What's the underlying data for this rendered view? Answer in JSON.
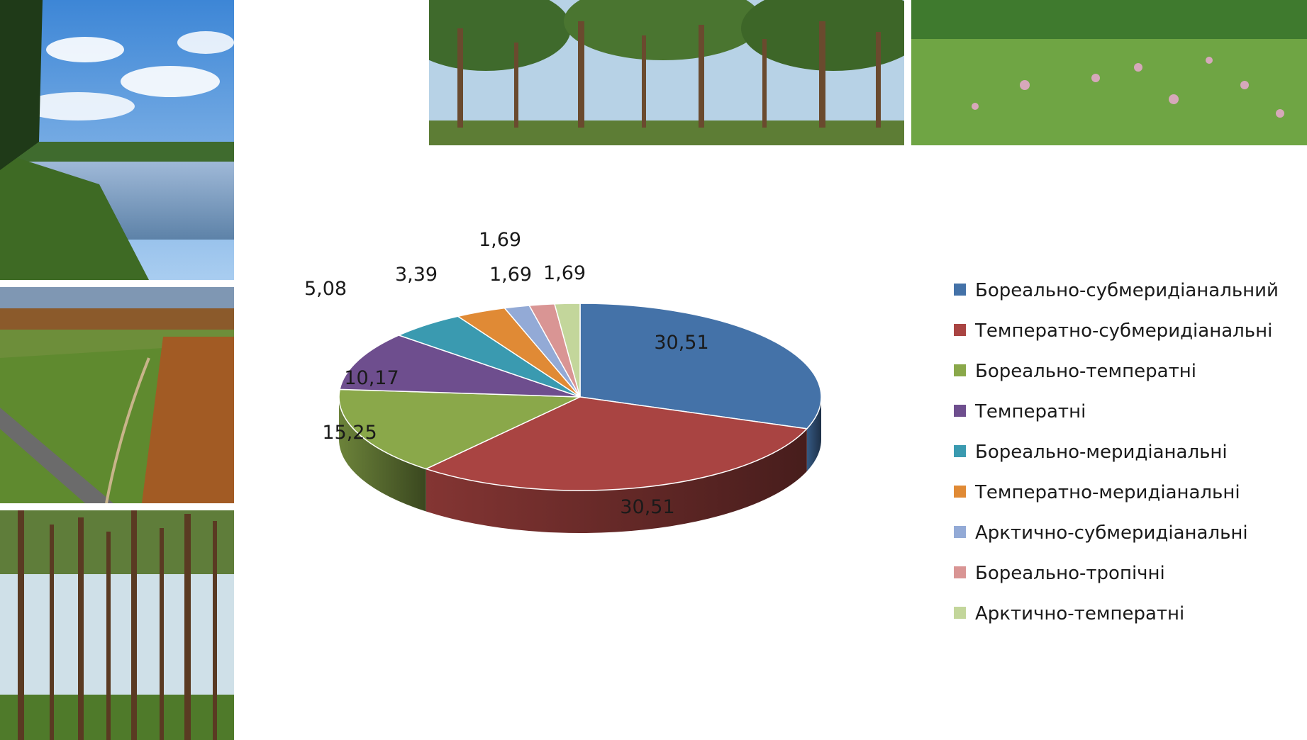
{
  "photos": [
    {
      "name": "river-photo"
    },
    {
      "name": "valley-photo"
    },
    {
      "name": "pine-forest-photo"
    },
    {
      "name": "forest-photo"
    },
    {
      "name": "meadow-photo"
    }
  ],
  "chart_data": {
    "type": "pie",
    "variant": "3d",
    "legend_position": "right",
    "series": [
      {
        "name": "Бореально-субмеридіанальний",
        "value": 30.51,
        "label": "30,51",
        "color": "#4472A8"
      },
      {
        "name": "Температно-субмеридіанальні",
        "value": 30.51,
        "label": "30,51",
        "color": "#A94442"
      },
      {
        "name": "Бореально-температні",
        "value": 15.25,
        "label": "15,25",
        "color": "#8AA84A"
      },
      {
        "name": "Температні",
        "value": 10.17,
        "label": "10,17",
        "color": "#6E4E8E"
      },
      {
        "name": "Бореально-меридіанальні",
        "value": 5.08,
        "label": "5,08",
        "color": "#3A9AB0"
      },
      {
        "name": "Температно-меридіанальні",
        "value": 3.39,
        "label": "3,39",
        "color": "#E08A35"
      },
      {
        "name": "Арктично-субмеридіанальні",
        "value": 1.69,
        "label": "1,69",
        "color": "#93AAD6"
      },
      {
        "name": "Бореально-тропічні",
        "value": 1.69,
        "label": "1,69",
        "color": "#D99594"
      },
      {
        "name": "Арктично-температні",
        "value": 1.69,
        "label": "1,69",
        "color": "#C3D69B"
      }
    ]
  }
}
